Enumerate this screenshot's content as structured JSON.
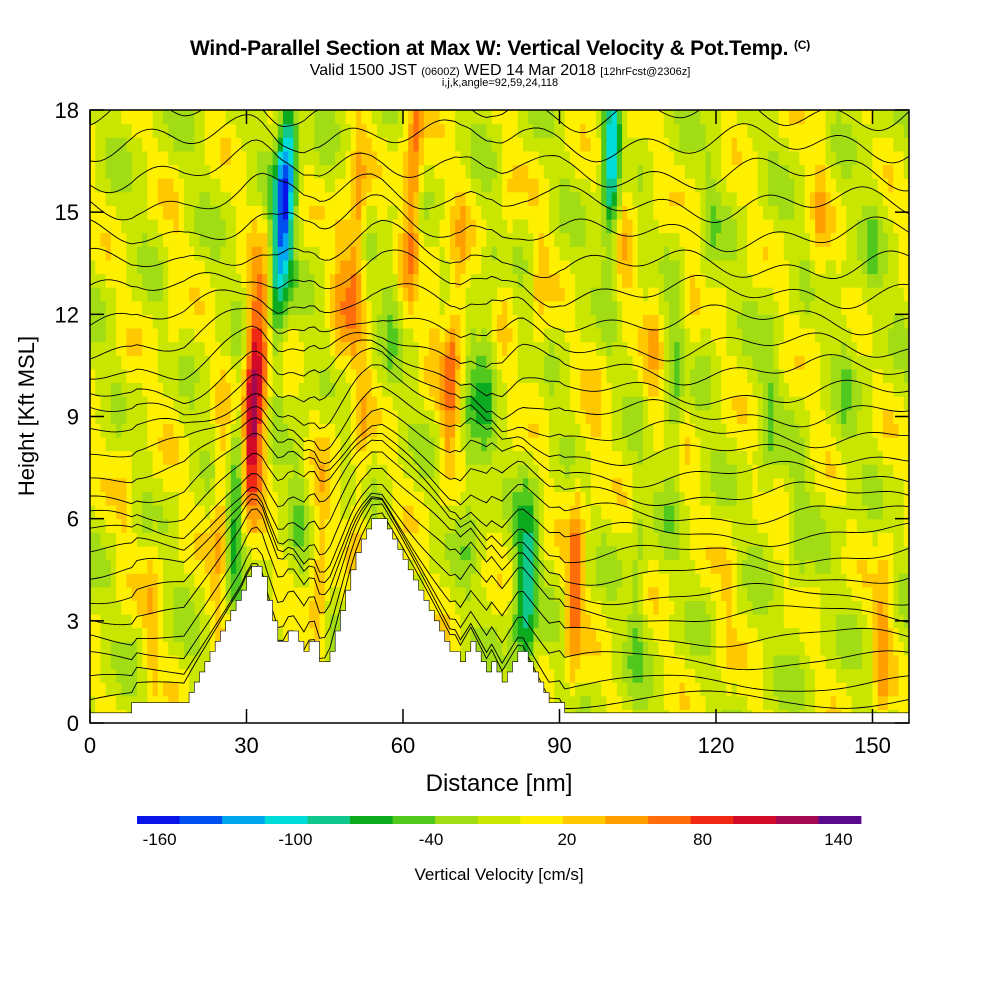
{
  "title": {
    "main": "Wind-Parallel Section at Max W: Vertical Velocity & Pot.Temp.",
    "mark": "(C)",
    "valid_prefix": "Valid 1500 JST",
    "valid_utc": "(0600Z)",
    "valid_date": "WED 14 Mar 2018",
    "forecast": "[12hrFcst@2306z]",
    "indices": "i,j,k,angle=92,59,24,118"
  },
  "chart_data": {
    "type": "heatmap",
    "xlabel": "Distance [nm]",
    "ylabel": "Height [Kft MSL]",
    "xlim": [
      0,
      157
    ],
    "ylim": [
      0,
      18
    ],
    "x_ticks": [
      0,
      30,
      60,
      90,
      120,
      150
    ],
    "y_ticks": [
      0,
      3,
      6,
      9,
      12,
      15,
      18
    ],
    "colorbar": {
      "label": "Vertical Velocity [cm/s]",
      "min": -170,
      "max": 150,
      "step": 20,
      "tick_labels": [
        -160,
        -100,
        -40,
        20,
        80,
        140
      ],
      "colors": [
        "#0a14e6",
        "#0050f0",
        "#00a6ee",
        "#00dcd8",
        "#10c88c",
        "#0caa1e",
        "#50c81e",
        "#a2dc14",
        "#c8e600",
        "#fff000",
        "#ffc800",
        "#ffa000",
        "#ff6e0a",
        "#f02814",
        "#d20a28",
        "#a50a50",
        "#5a0a8c"
      ]
    },
    "terrain_kft": [
      [
        0,
        0.3
      ],
      [
        8,
        0.3
      ],
      [
        8,
        0.6
      ],
      [
        16,
        0.6
      ],
      [
        18,
        0.6
      ],
      [
        19,
        0.9
      ],
      [
        20,
        1.2
      ],
      [
        21,
        1.5
      ],
      [
        22,
        1.8
      ],
      [
        23,
        2.1
      ],
      [
        24,
        2.4
      ],
      [
        25,
        2.7
      ],
      [
        26,
        3.0
      ],
      [
        27,
        3.3
      ],
      [
        28,
        3.6
      ],
      [
        29,
        3.9
      ],
      [
        30,
        4.3
      ],
      [
        31,
        4.6
      ],
      [
        32,
        4.6
      ],
      [
        33,
        4.3
      ],
      [
        34,
        3.6
      ],
      [
        35,
        3.0
      ],
      [
        36,
        2.4
      ],
      [
        37,
        2.4
      ],
      [
        38,
        2.7
      ],
      [
        39,
        2.7
      ],
      [
        40,
        2.4
      ],
      [
        41,
        2.1
      ],
      [
        42,
        2.4
      ],
      [
        43,
        2.4
      ],
      [
        44,
        1.8
      ],
      [
        45,
        1.8
      ],
      [
        46,
        2.1
      ],
      [
        47,
        2.7
      ],
      [
        48,
        3.3
      ],
      [
        49,
        3.9
      ],
      [
        50,
        4.5
      ],
      [
        51,
        5.0
      ],
      [
        52,
        5.4
      ],
      [
        53,
        5.7
      ],
      [
        54,
        6.0
      ],
      [
        56,
        6.0
      ],
      [
        57,
        5.7
      ],
      [
        58,
        5.4
      ],
      [
        59,
        5.1
      ],
      [
        60,
        4.8
      ],
      [
        61,
        4.5
      ],
      [
        62,
        4.2
      ],
      [
        63,
        3.9
      ],
      [
        64,
        3.6
      ],
      [
        65,
        3.3
      ],
      [
        66,
        3.0
      ],
      [
        67,
        2.7
      ],
      [
        68,
        2.4
      ],
      [
        69,
        2.1
      ],
      [
        70,
        2.1
      ],
      [
        71,
        1.8
      ],
      [
        72,
        2.1
      ],
      [
        73,
        2.4
      ],
      [
        74,
        2.1
      ],
      [
        75,
        1.8
      ],
      [
        76,
        1.5
      ],
      [
        77,
        1.8
      ],
      [
        78,
        1.5
      ],
      [
        79,
        1.2
      ],
      [
        80,
        1.5
      ],
      [
        81,
        1.8
      ],
      [
        82,
        2.1
      ],
      [
        83,
        2.1
      ],
      [
        84,
        1.8
      ],
      [
        85,
        1.5
      ],
      [
        86,
        1.2
      ],
      [
        87,
        0.9
      ],
      [
        88,
        0.6
      ],
      [
        90,
        0.6
      ],
      [
        91,
        0.3
      ],
      [
        157,
        0.3
      ]
    ],
    "cores_cm_s": [
      [
        31,
        9.5,
        130
      ],
      [
        33,
        10,
        70
      ],
      [
        36,
        14,
        -90
      ],
      [
        38,
        16,
        -120
      ],
      [
        25,
        6,
        50
      ],
      [
        28,
        6.5,
        -60
      ],
      [
        40,
        6.8,
        -20
      ],
      [
        44,
        4.5,
        50
      ],
      [
        48,
        13,
        40
      ],
      [
        51,
        14,
        70
      ],
      [
        52,
        8,
        40
      ],
      [
        58,
        13,
        -30
      ],
      [
        59,
        15,
        20
      ],
      [
        62,
        16,
        80
      ],
      [
        66,
        12,
        20
      ],
      [
        69,
        10,
        60
      ],
      [
        71,
        13,
        30
      ],
      [
        73,
        8,
        -40
      ],
      [
        76,
        10,
        -40
      ],
      [
        80,
        14,
        20
      ],
      [
        82,
        3.5,
        -40
      ],
      [
        84,
        3.8,
        -80
      ],
      [
        86,
        12,
        30
      ],
      [
        93,
        4,
        70
      ],
      [
        97,
        9,
        20
      ],
      [
        100,
        17,
        -110
      ],
      [
        103,
        15,
        30
      ],
      [
        105,
        4,
        -30
      ],
      [
        108,
        11,
        30
      ],
      [
        112,
        9.5,
        -40
      ],
      [
        115,
        12,
        20
      ],
      [
        119,
        14,
        -20
      ],
      [
        122,
        3,
        20
      ],
      [
        130,
        9,
        -30
      ],
      [
        136,
        5,
        -20
      ],
      [
        140,
        15,
        30
      ],
      [
        145,
        10,
        -20
      ],
      [
        150,
        14,
        -20
      ],
      [
        152,
        2.5,
        50
      ],
      [
        7,
        7,
        20
      ],
      [
        12,
        3,
        30
      ],
      [
        16,
        12,
        20
      ]
    ],
    "isentropes_base_kft": [
      0.4,
      0.9,
      1.6,
      2.3,
      3.0,
      3.6,
      4.2,
      4.8,
      5.4,
      6.0,
      6.6,
      7.2,
      7.8,
      8.4,
      9.0,
      9.6,
      10.3,
      11.0,
      11.8,
      12.6,
      13.4,
      14.3,
      15.2,
      16.1,
      17.0,
      17.9,
      18.8
    ]
  }
}
